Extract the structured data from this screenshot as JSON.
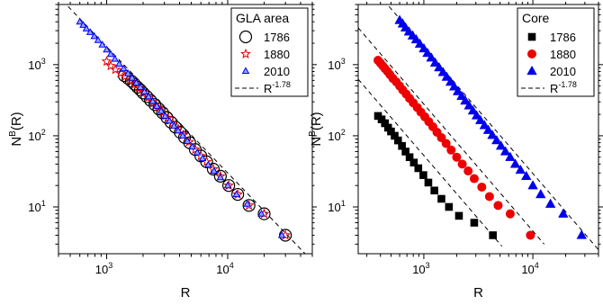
{
  "chart_data": [
    {
      "type": "scatter",
      "title": "",
      "xlabel": "R",
      "ylabel": "N",
      "ylabel_sup": "B",
      "ylabel_suffix": "(R)",
      "x_scale": "log",
      "y_scale": "log",
      "xlim": [
        400,
        50000
      ],
      "ylim": [
        2.2,
        7000
      ],
      "x_ticks": [
        {
          "value": 1000,
          "base": "10",
          "exp": "3"
        },
        {
          "value": 10000,
          "base": "10",
          "exp": "4"
        }
      ],
      "y_ticks": [
        {
          "value": 10,
          "base": "10",
          "exp": "1"
        },
        {
          "value": 100,
          "base": "10",
          "exp": "2"
        },
        {
          "value": 1000,
          "base": "10",
          "exp": "3"
        }
      ],
      "legend": {
        "title": "GLA area",
        "placement": "top-right",
        "entries": [
          {
            "label": "1786",
            "marker": "open-circle",
            "color": "#000000"
          },
          {
            "label": "1880",
            "marker": "open-star",
            "color": "#e00000"
          },
          {
            "label": "2010",
            "marker": "open-triangle",
            "color": "#0000ee"
          },
          {
            "label": "R",
            "sup": "-1.78",
            "marker": "dashed-line",
            "color": "#000000"
          }
        ]
      },
      "fit_lines": [
        {
          "slope": -1.78,
          "points": [
            [
              480,
              6560
            ],
            [
              45000,
              2.08
            ]
          ]
        }
      ],
      "series": [
        {
          "name": "1786",
          "marker": "open-circle",
          "color": "#000000",
          "points": [
            [
              1400,
              700
            ],
            [
              1500,
              640
            ],
            [
              1600,
              585
            ],
            [
              1700,
              530
            ],
            [
              1800,
              480
            ],
            [
              1900,
              440
            ],
            [
              2000,
              400
            ],
            [
              2150,
              355
            ],
            [
              2300,
              315
            ],
            [
              2500,
              275
            ],
            [
              2700,
              238
            ],
            [
              2900,
              210
            ],
            [
              3150,
              180
            ],
            [
              3400,
              155
            ],
            [
              3700,
              132
            ],
            [
              4050,
              112
            ],
            [
              4400,
              95
            ],
            [
              4850,
              80
            ],
            [
              5400,
              64
            ],
            [
              6000,
              52
            ],
            [
              6700,
              43
            ],
            [
              7600,
              34
            ],
            [
              8700,
              27
            ],
            [
              10200,
              20
            ],
            [
              12100,
              15
            ],
            [
              15000,
              10.5
            ],
            [
              20000,
              8
            ],
            [
              30000,
              4
            ]
          ]
        },
        {
          "name": "1880",
          "marker": "open-star",
          "color": "#e00000",
          "points": [
            [
              1000,
              1110
            ],
            [
              1080,
              960
            ],
            [
              1180,
              850
            ],
            [
              1300,
              760
            ],
            [
              1420,
              680
            ],
            [
              1550,
              600
            ],
            [
              1700,
              530
            ],
            [
              1850,
              470
            ],
            [
              2000,
              410
            ],
            [
              2200,
              345
            ],
            [
              2400,
              300
            ],
            [
              2650,
              252
            ],
            [
              2900,
              212
            ],
            [
              3200,
              178
            ],
            [
              3500,
              150
            ],
            [
              3900,
              125
            ],
            [
              4300,
              103
            ],
            [
              4800,
              82
            ],
            [
              5400,
              64
            ],
            [
              6000,
              52
            ],
            [
              6700,
              43
            ],
            [
              7600,
              34
            ],
            [
              8700,
              27
            ],
            [
              10200,
              20
            ],
            [
              12100,
              15
            ],
            [
              15000,
              10.5
            ],
            [
              20000,
              8
            ],
            [
              30000,
              4
            ]
          ]
        },
        {
          "name": "2010",
          "marker": "open-triangle",
          "color": "#0000ee",
          "points": [
            [
              600,
              4000
            ],
            [
              640,
              3600
            ],
            [
              680,
              3200
            ],
            [
              730,
              2850
            ],
            [
              790,
              2500
            ],
            [
              850,
              2200
            ],
            [
              920,
              1900
            ],
            [
              1000,
              1620
            ],
            [
              1080,
              1400
            ],
            [
              1170,
              1200
            ],
            [
              1270,
              1020
            ],
            [
              1380,
              880
            ],
            [
              1500,
              750
            ],
            [
              1620,
              650
            ],
            [
              1760,
              555
            ],
            [
              1900,
              480
            ],
            [
              2050,
              415
            ],
            [
              2220,
              355
            ],
            [
              2400,
              305
            ],
            [
              2600,
              262
            ],
            [
              2820,
              222
            ],
            [
              3050,
              190
            ],
            [
              3300,
              162
            ],
            [
              3600,
              138
            ],
            [
              3900,
              118
            ],
            [
              4250,
              100
            ],
            [
              4650,
              84
            ],
            [
              5100,
              70
            ],
            [
              5600,
              58
            ],
            [
              6200,
              48
            ],
            [
              6900,
              39
            ],
            [
              7700,
              32
            ],
            [
              8700,
              26
            ],
            [
              10000,
              20
            ],
            [
              11800,
              15
            ],
            [
              14500,
              11
            ],
            [
              19000,
              8
            ],
            [
              28000,
              4
            ]
          ]
        }
      ]
    },
    {
      "type": "scatter",
      "title": "",
      "xlabel": "R",
      "ylabel": "N",
      "ylabel_sup": "B",
      "ylabel_suffix": "(R)",
      "x_scale": "log",
      "y_scale": "log",
      "xlim": [
        250,
        40000
      ],
      "ylim": [
        2.2,
        7000
      ],
      "x_ticks": [
        {
          "value": 1000,
          "base": "10",
          "exp": "3"
        },
        {
          "value": 10000,
          "base": "10",
          "exp": "4"
        }
      ],
      "y_ticks": [
        {
          "value": 10,
          "base": "10",
          "exp": "1"
        },
        {
          "value": 100,
          "base": "10",
          "exp": "2"
        },
        {
          "value": 1000,
          "base": "10",
          "exp": "3"
        }
      ],
      "legend": {
        "title": "Core",
        "placement": "top-right",
        "entries": [
          {
            "label": "1786",
            "marker": "filled-square",
            "color": "#000000"
          },
          {
            "label": "1880",
            "marker": "filled-circle",
            "color": "#ee0000"
          },
          {
            "label": "2010",
            "marker": "filled-triangle",
            "color": "#0000ee"
          },
          {
            "label": "R",
            "sup": "-1.78",
            "marker": "dashed-line",
            "color": "#000000"
          }
        ]
      },
      "fit_lines": [
        {
          "slope": -1.78,
          "points": [
            [
              250,
              623
            ],
            [
              5200,
              2.8
            ]
          ]
        },
        {
          "slope": -1.78,
          "points": [
            [
              250,
              3290
            ],
            [
              12700,
              3.0
            ]
          ]
        },
        {
          "slope": -1.78,
          "points": [
            [
              480,
              6560
            ],
            [
              40000,
              2.5
            ]
          ]
        }
      ],
      "series": [
        {
          "name": "1786",
          "marker": "filled-square",
          "color": "#000000",
          "points": [
            [
              380,
              190
            ],
            [
              410,
              170
            ],
            [
              440,
              150
            ],
            [
              470,
              130
            ],
            [
              500,
              115
            ],
            [
              540,
              100
            ],
            [
              580,
              86
            ],
            [
              630,
              72
            ],
            [
              680,
              60
            ],
            [
              740,
              50
            ],
            [
              810,
              42
            ],
            [
              890,
              35
            ],
            [
              990,
              28
            ],
            [
              1100,
              22
            ],
            [
              1250,
              17
            ],
            [
              1450,
              13
            ],
            [
              1700,
              10
            ],
            [
              2100,
              7.5
            ],
            [
              2900,
              6
            ],
            [
              4300,
              4
            ]
          ]
        },
        {
          "name": "1880",
          "marker": "filled-circle",
          "color": "#ee0000",
          "points": [
            [
              380,
              1150
            ],
            [
              400,
              1050
            ],
            [
              420,
              960
            ],
            [
              440,
              880
            ],
            [
              465,
              800
            ],
            [
              490,
              720
            ],
            [
              520,
              640
            ],
            [
              560,
              570
            ],
            [
              600,
              500
            ],
            [
              640,
              440
            ],
            [
              690,
              385
            ],
            [
              740,
              335
            ],
            [
              800,
              290
            ],
            [
              870,
              250
            ],
            [
              940,
              215
            ],
            [
              1020,
              185
            ],
            [
              1110,
              158
            ],
            [
              1210,
              134
            ],
            [
              1320,
              112
            ],
            [
              1450,
              94
            ],
            [
              1600,
              78
            ],
            [
              1780,
              63
            ],
            [
              2000,
              50
            ],
            [
              2250,
              40
            ],
            [
              2550,
              32
            ],
            [
              2900,
              25
            ],
            [
              3400,
              19
            ],
            [
              4000,
              14
            ],
            [
              4800,
              10.5
            ],
            [
              6200,
              8
            ],
            [
              9500,
              4
            ]
          ]
        },
        {
          "name": "2010",
          "marker": "filled-triangle",
          "color": "#0000ee",
          "points": [
            [
              600,
              4200
            ],
            [
              640,
              3750
            ],
            [
              680,
              3300
            ],
            [
              730,
              2900
            ],
            [
              790,
              2550
            ],
            [
              850,
              2250
            ],
            [
              920,
              1950
            ],
            [
              1000,
              1680
            ],
            [
              1080,
              1450
            ],
            [
              1170,
              1250
            ],
            [
              1270,
              1060
            ],
            [
              1380,
              910
            ],
            [
              1500,
              780
            ],
            [
              1620,
              670
            ],
            [
              1760,
              570
            ],
            [
              1900,
              490
            ],
            [
              2050,
              420
            ],
            [
              2220,
              360
            ],
            [
              2400,
              310
            ],
            [
              2600,
              265
            ],
            [
              2820,
              225
            ],
            [
              3050,
              192
            ],
            [
              3300,
              165
            ],
            [
              3600,
              140
            ],
            [
              3900,
              120
            ],
            [
              4250,
              102
            ],
            [
              4650,
              86
            ],
            [
              5100,
              72
            ],
            [
              5600,
              60
            ],
            [
              6200,
              50
            ],
            [
              6900,
              40
            ],
            [
              7700,
              33
            ],
            [
              8700,
              27
            ],
            [
              10000,
              20
            ],
            [
              11800,
              15
            ],
            [
              14500,
              11
            ],
            [
              19000,
              8
            ],
            [
              28000,
              4
            ]
          ]
        }
      ]
    }
  ]
}
